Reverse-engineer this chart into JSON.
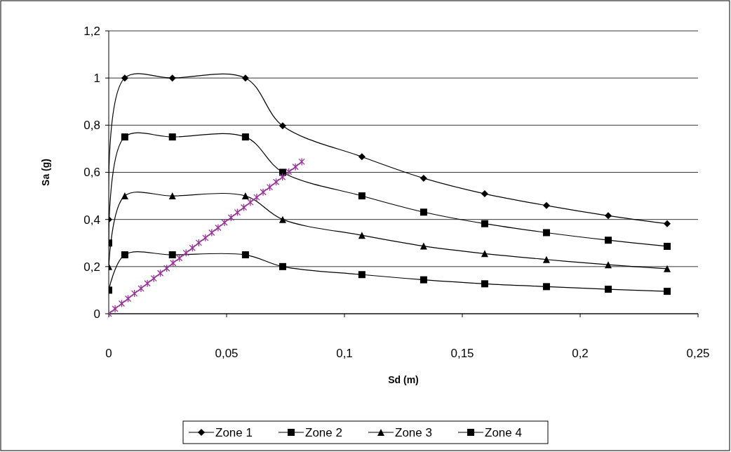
{
  "chart_data": {
    "type": "line",
    "xlabel": "Sd (m)",
    "ylabel": "Sa (g)",
    "xlim": [
      0,
      0.25
    ],
    "xticks": [
      0,
      {
        "value": 0.05,
        "label": "0,05"
      },
      {
        "value": 0.1,
        "label": "0,1"
      },
      {
        "value": 0.15,
        "label": "0,15"
      },
      {
        "value": 0.2,
        "label": "0,2"
      },
      {
        "value": 0.25,
        "label": "0,25"
      }
    ],
    "ylim": [
      0,
      1.2
    ],
    "yticks": [
      0,
      {
        "value": 0.2,
        "label": "0,2"
      },
      {
        "value": 0.4,
        "label": "0,4"
      },
      {
        "value": 0.6,
        "label": "0,6"
      },
      {
        "value": 0.8,
        "label": "0,8"
      },
      {
        "value": 1,
        "label": "1"
      },
      {
        "value": 1.2,
        "label": "1,2"
      }
    ],
    "grid": "y",
    "legend": "bottom",
    "series": [
      {
        "name": "Zone 1",
        "color": "#000000",
        "marker": "diamond",
        "x": [
          0,
          0.0068,
          0.027,
          0.058,
          0.0738,
          0.1074,
          0.1336,
          0.1595,
          0.1857,
          0.2119,
          0.2369
        ],
        "values": [
          0.4,
          1,
          1,
          1,
          0.797,
          0.666,
          0.575,
          0.509,
          0.459,
          0.416,
          0.382
        ]
      },
      {
        "name": "Zone 2",
        "color": "#000000",
        "marker": "square",
        "x": [
          0,
          0.0068,
          0.027,
          0.058,
          0.0738,
          0.1074,
          0.1336,
          0.1595,
          0.1857,
          0.2119,
          0.2369
        ],
        "values": [
          0.3,
          0.75,
          0.75,
          0.75,
          0.6,
          0.5,
          0.431,
          0.382,
          0.344,
          0.312,
          0.286
        ]
      },
      {
        "name": "Zone 3",
        "color": "#000000",
        "marker": "triangle",
        "x": [
          0,
          0.0068,
          0.027,
          0.058,
          0.0738,
          0.1074,
          0.1336,
          0.1595,
          0.1857,
          0.2119,
          0.2369
        ],
        "values": [
          0.2,
          0.5,
          0.5,
          0.5,
          0.4,
          0.333,
          0.287,
          0.255,
          0.23,
          0.208,
          0.191
        ]
      },
      {
        "name": "Zone 4",
        "color": "#000000",
        "marker": "square",
        "x": [
          0,
          0.0068,
          0.027,
          0.058,
          0.0738,
          0.1074,
          0.1336,
          0.1595,
          0.1857,
          0.2119,
          0.2369
        ],
        "values": [
          0.1,
          0.25,
          0.25,
          0.25,
          0.2,
          0.166,
          0.144,
          0.127,
          0.115,
          0.104,
          0.095
        ]
      },
      {
        "color": "#993399",
        "marker": "cross",
        "x": [
          0,
          0.0027,
          0.0055,
          0.0082,
          0.0109,
          0.0137,
          0.0164,
          0.0191,
          0.0219,
          0.0246,
          0.0273,
          0.03,
          0.0328,
          0.0355,
          0.0382,
          0.041,
          0.0437,
          0.0464,
          0.0491,
          0.0519,
          0.0546,
          0.0573,
          0.0601,
          0.0628,
          0.0655,
          0.0683,
          0.071,
          0.0737,
          0.0764,
          0.0792,
          0.0819
        ],
        "values": [
          0,
          0.021,
          0.043,
          0.064,
          0.086,
          0.107,
          0.129,
          0.15,
          0.172,
          0.193,
          0.215,
          0.236,
          0.258,
          0.279,
          0.301,
          0.322,
          0.344,
          0.365,
          0.387,
          0.408,
          0.43,
          0.451,
          0.473,
          0.494,
          0.516,
          0.537,
          0.559,
          0.58,
          0.602,
          0.623,
          0.645
        ]
      }
    ]
  }
}
